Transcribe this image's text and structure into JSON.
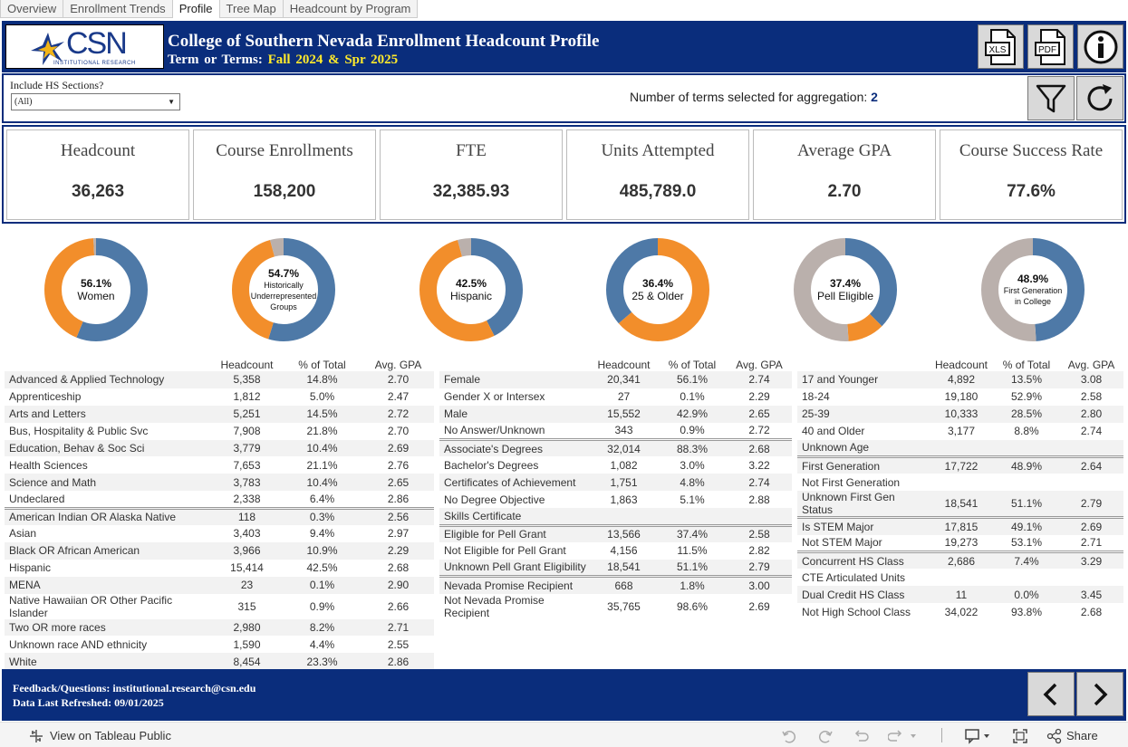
{
  "tabs": [
    "Overview",
    "Enrollment Trends",
    "Profile",
    "Tree Map",
    "Headcount by Program"
  ],
  "header": {
    "logo_text": "CSN",
    "logo_sub": "INSTITUTIONAL RESEARCH",
    "title": "College of Southern Nevada Enrollment Headcount Profile",
    "terms_label": "Term or Terms:",
    "terms_value": "Fall 2024 & Spr 2025",
    "xls_label": "XLS",
    "pdf_label": "PDF"
  },
  "filter": {
    "label": "Include HS Sections?",
    "value": "(All)",
    "terms_text": "Number of terms selected for aggregation:",
    "terms_count": "2"
  },
  "kpis": [
    {
      "label": "Headcount",
      "value": "36,263"
    },
    {
      "label": "Course Enrollments",
      "value": "158,200"
    },
    {
      "label": "FTE",
      "value": "32,385.93"
    },
    {
      "label": "Units Attempted",
      "value": "485,789.0"
    },
    {
      "label": "Average GPA",
      "value": "2.70"
    },
    {
      "label": "Course Success Rate",
      "value": "77.6%"
    }
  ],
  "colors": {
    "blue": "#4e79a7",
    "orange": "#f28e2b",
    "grey": "#bab0ac",
    "navy": "#0a2d7c"
  },
  "donuts": [
    {
      "pct": "56.1%",
      "label1": "Women",
      "label2": "",
      "segments": [
        {
          "color": "#4e79a7",
          "value": 56.1
        },
        {
          "color": "#f28e2b",
          "value": 42.9
        },
        {
          "color": "#bab0ac",
          "value": 1.0
        }
      ]
    },
    {
      "pct": "54.7%",
      "label1": "Historically Underrepresented",
      "label2": "Groups",
      "segments": [
        {
          "color": "#4e79a7",
          "value": 54.7
        },
        {
          "color": "#f28e2b",
          "value": 40.9
        },
        {
          "color": "#bab0ac",
          "value": 4.4
        }
      ]
    },
    {
      "pct": "42.5%",
      "label1": "Hispanic",
      "label2": "",
      "segments": [
        {
          "color": "#4e79a7",
          "value": 42.5
        },
        {
          "color": "#f28e2b",
          "value": 53.1
        },
        {
          "color": "#bab0ac",
          "value": 4.4
        }
      ]
    },
    {
      "pct": "36.4%",
      "label1": "25 & Older",
      "label2": "",
      "segments": [
        {
          "color": "#f28e2b",
          "value": 63.6
        },
        {
          "color": "#4e79a7",
          "value": 36.4
        }
      ]
    },
    {
      "pct": "37.4%",
      "label1": "Pell Eligible",
      "label2": "",
      "segments": [
        {
          "color": "#4e79a7",
          "value": 37.4
        },
        {
          "color": "#f28e2b",
          "value": 11.5
        },
        {
          "color": "#bab0ac",
          "value": 51.1
        }
      ]
    },
    {
      "pct": "48.9%",
      "label1": "First Generation",
      "label2": "in College",
      "segments": [
        {
          "color": "#4e79a7",
          "value": 48.9
        },
        {
          "color": "#bab0ac",
          "value": 51.1
        }
      ]
    }
  ],
  "table_headers": [
    "Headcount",
    "% of Total",
    "Avg. GPA"
  ],
  "tables": [
    {
      "groups": [
        [
          {
            "label": "Advanced & Applied Technology",
            "hc": "5,358",
            "pct": "14.8%",
            "gpa": "2.70"
          },
          {
            "label": "Apprenticeship",
            "hc": "1,812",
            "pct": "5.0%",
            "gpa": "2.47"
          },
          {
            "label": "Arts and Letters",
            "hc": "5,251",
            "pct": "14.5%",
            "gpa": "2.72"
          },
          {
            "label": "Bus, Hospitality & Public Svc",
            "hc": "7,908",
            "pct": "21.8%",
            "gpa": "2.70"
          },
          {
            "label": "Education, Behav & Soc Sci",
            "hc": "3,779",
            "pct": "10.4%",
            "gpa": "2.69"
          },
          {
            "label": "Health Sciences",
            "hc": "7,653",
            "pct": "21.1%",
            "gpa": "2.76"
          },
          {
            "label": "Science and Math",
            "hc": "3,783",
            "pct": "10.4%",
            "gpa": "2.65"
          },
          {
            "label": "Undeclared",
            "hc": "2,338",
            "pct": "6.4%",
            "gpa": "2.86"
          }
        ],
        [
          {
            "label": "American Indian OR Alaska Native",
            "hc": "118",
            "pct": "0.3%",
            "gpa": "2.56"
          },
          {
            "label": "Asian",
            "hc": "3,403",
            "pct": "9.4%",
            "gpa": "2.97"
          },
          {
            "label": "Black OR African American",
            "hc": "3,966",
            "pct": "10.9%",
            "gpa": "2.29"
          },
          {
            "label": "Hispanic",
            "hc": "15,414",
            "pct": "42.5%",
            "gpa": "2.68"
          },
          {
            "label": "MENA",
            "hc": "23",
            "pct": "0.1%",
            "gpa": "2.90"
          },
          {
            "label": "Native Hawaiian OR Other Pacific Islander",
            "hc": "315",
            "pct": "0.9%",
            "gpa": "2.66"
          },
          {
            "label": "Two OR more races",
            "hc": "2,980",
            "pct": "8.2%",
            "gpa": "2.71"
          },
          {
            "label": "Unknown race AND ethnicity",
            "hc": "1,590",
            "pct": "4.4%",
            "gpa": "2.55"
          },
          {
            "label": "White",
            "hc": "8,454",
            "pct": "23.3%",
            "gpa": "2.86"
          }
        ]
      ]
    },
    {
      "groups": [
        [
          {
            "label": "Female",
            "hc": "20,341",
            "pct": "56.1%",
            "gpa": "2.74"
          },
          {
            "label": "Gender X or Intersex",
            "hc": "27",
            "pct": "0.1%",
            "gpa": "2.29"
          },
          {
            "label": "Male",
            "hc": "15,552",
            "pct": "42.9%",
            "gpa": "2.65"
          },
          {
            "label": "No Answer/Unknown",
            "hc": "343",
            "pct": "0.9%",
            "gpa": "2.72"
          }
        ],
        [
          {
            "label": "Associate's Degrees",
            "hc": "32,014",
            "pct": "88.3%",
            "gpa": "2.68"
          },
          {
            "label": "Bachelor's Degrees",
            "hc": "1,082",
            "pct": "3.0%",
            "gpa": "3.22"
          },
          {
            "label": "Certificates of Achievement",
            "hc": "1,751",
            "pct": "4.8%",
            "gpa": "2.74"
          },
          {
            "label": "No Degree Objective",
            "hc": "1,863",
            "pct": "5.1%",
            "gpa": "2.88"
          },
          {
            "label": "Skills Certificate",
            "hc": "",
            "pct": "",
            "gpa": ""
          }
        ],
        [
          {
            "label": "Eligible for Pell Grant",
            "hc": "13,566",
            "pct": "37.4%",
            "gpa": "2.58"
          },
          {
            "label": "Not Eligible for Pell Grant",
            "hc": "4,156",
            "pct": "11.5%",
            "gpa": "2.82"
          },
          {
            "label": "Unknown Pell Grant Eligibility",
            "hc": "18,541",
            "pct": "51.1%",
            "gpa": "2.79"
          }
        ],
        [
          {
            "label": "Nevada Promise Recipient",
            "hc": "668",
            "pct": "1.8%",
            "gpa": "3.00"
          },
          {
            "label": "Not Nevada Promise Recipient",
            "hc": "35,765",
            "pct": "98.6%",
            "gpa": "2.69"
          }
        ]
      ]
    },
    {
      "groups": [
        [
          {
            "label": "17 and Younger",
            "hc": "4,892",
            "pct": "13.5%",
            "gpa": "3.08"
          },
          {
            "label": "18-24",
            "hc": "19,180",
            "pct": "52.9%",
            "gpa": "2.58"
          },
          {
            "label": "25-39",
            "hc": "10,333",
            "pct": "28.5%",
            "gpa": "2.80"
          },
          {
            "label": "40 and Older",
            "hc": "3,177",
            "pct": "8.8%",
            "gpa": "2.74"
          },
          {
            "label": "Unknown Age",
            "hc": "",
            "pct": "",
            "gpa": ""
          }
        ],
        [
          {
            "label": "First Generation",
            "hc": "17,722",
            "pct": "48.9%",
            "gpa": "2.64"
          },
          {
            "label": "Not First Generation",
            "hc": "",
            "pct": "",
            "gpa": ""
          },
          {
            "label": "Unknown First Gen Status",
            "hc": "18,541",
            "pct": "51.1%",
            "gpa": "2.79"
          }
        ],
        [
          {
            "label": "Is STEM Major",
            "hc": "17,815",
            "pct": "49.1%",
            "gpa": "2.69"
          },
          {
            "label": "Not STEM Major",
            "hc": "19,273",
            "pct": "53.1%",
            "gpa": "2.71"
          }
        ],
        [
          {
            "label": "Concurrent HS Class",
            "hc": "2,686",
            "pct": "7.4%",
            "gpa": "3.29"
          },
          {
            "label": "CTE Articulated Units",
            "hc": "",
            "pct": "",
            "gpa": ""
          },
          {
            "label": "Dual Credit HS Class",
            "hc": "11",
            "pct": "0.0%",
            "gpa": "3.45"
          },
          {
            "label": "Not High School Class",
            "hc": "34,022",
            "pct": "93.8%",
            "gpa": "2.68"
          }
        ]
      ]
    }
  ],
  "footer": {
    "feedback": "Feedback/Questions: institutional.research@csn.edu",
    "refreshed": "Data Last Refreshed: 09/01/2025"
  },
  "bottom": {
    "view_label": "View on Tableau Public",
    "share_label": "Share"
  }
}
